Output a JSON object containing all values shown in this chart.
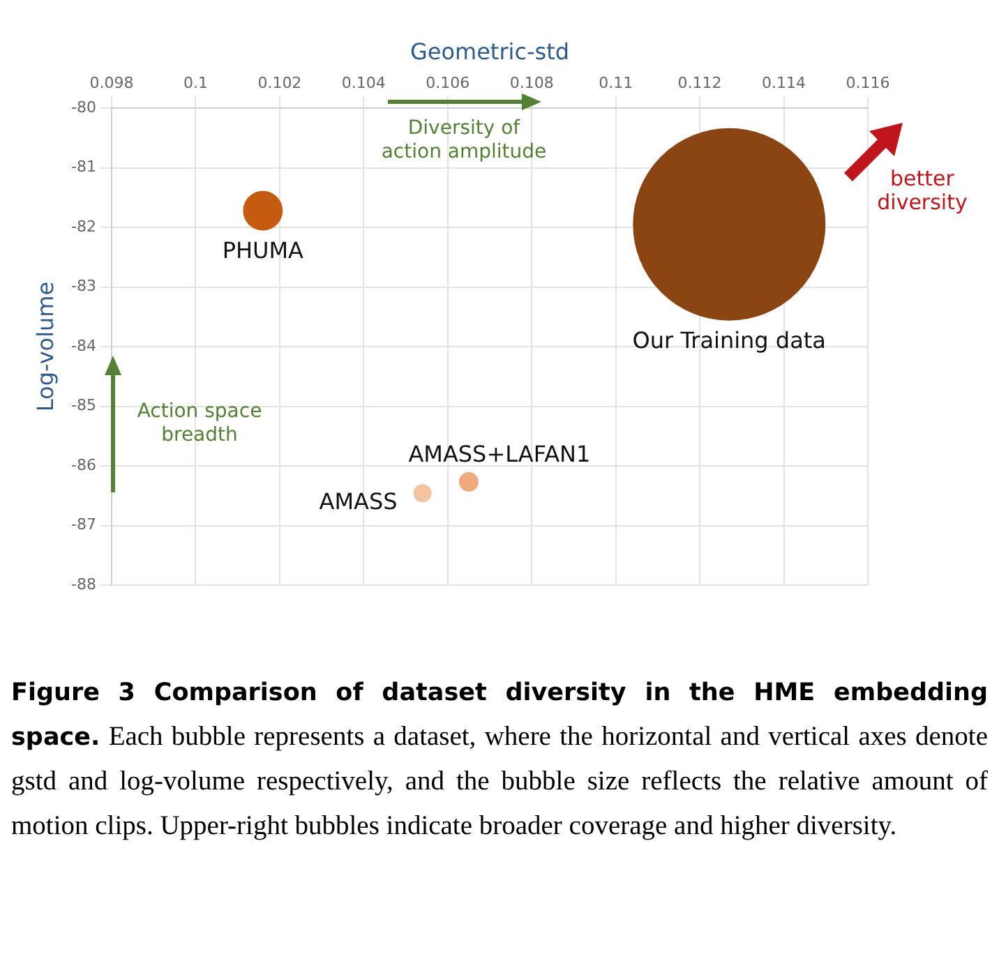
{
  "chart_data": {
    "type": "bubble",
    "xlabel": "Geometric-std",
    "ylabel": "Log-volume",
    "series": [
      {
        "name": "PHUMA",
        "color": "#c55a11",
        "x": [
          0.1016
        ],
        "values": [
          -81.72
        ],
        "sizes": [
          0.04
        ]
      },
      {
        "name": "Our Training data",
        "color": "#8b4513",
        "x": [
          0.1127
        ],
        "values": [
          -81.95
        ],
        "sizes": [
          1
        ]
      },
      {
        "name": "AMASS",
        "color": "#f4c3a0",
        "x": [
          0.1054
        ],
        "values": [
          -86.46
        ],
        "sizes": [
          0.0077
        ]
      },
      {
        "name": "AMASS+LAFAN1",
        "color": "#f0aa7c",
        "x": [
          0.1065
        ],
        "values": [
          -86.27
        ],
        "sizes": [
          0.009
        ]
      }
    ],
    "xlim": [
      0.098,
      0.116
    ],
    "xticks": [
      0.098,
      0.1,
      0.102,
      0.104,
      0.106,
      0.108,
      0.11,
      0.112,
      0.114,
      0.116
    ],
    "ylim": [
      -88,
      -80
    ],
    "yticks": [
      -88,
      -87,
      -86,
      -85,
      -84,
      -83,
      -82,
      -81,
      -80
    ],
    "grid": true,
    "legend": false,
    "annotations": [
      "Diversity of action amplitude",
      "Action space breadth",
      "better diversity",
      "Figure 3 Comparison of dataset diversity in the HME embedding space.",
      "Each bubble represents a dataset, where the horizontal and vertical axes denote gstd and log-volume respectively, and the bubble size reflects the relative amount of motion clips. Upper-right bubbles indicate broader coverage and higher diversity."
    ]
  }
}
